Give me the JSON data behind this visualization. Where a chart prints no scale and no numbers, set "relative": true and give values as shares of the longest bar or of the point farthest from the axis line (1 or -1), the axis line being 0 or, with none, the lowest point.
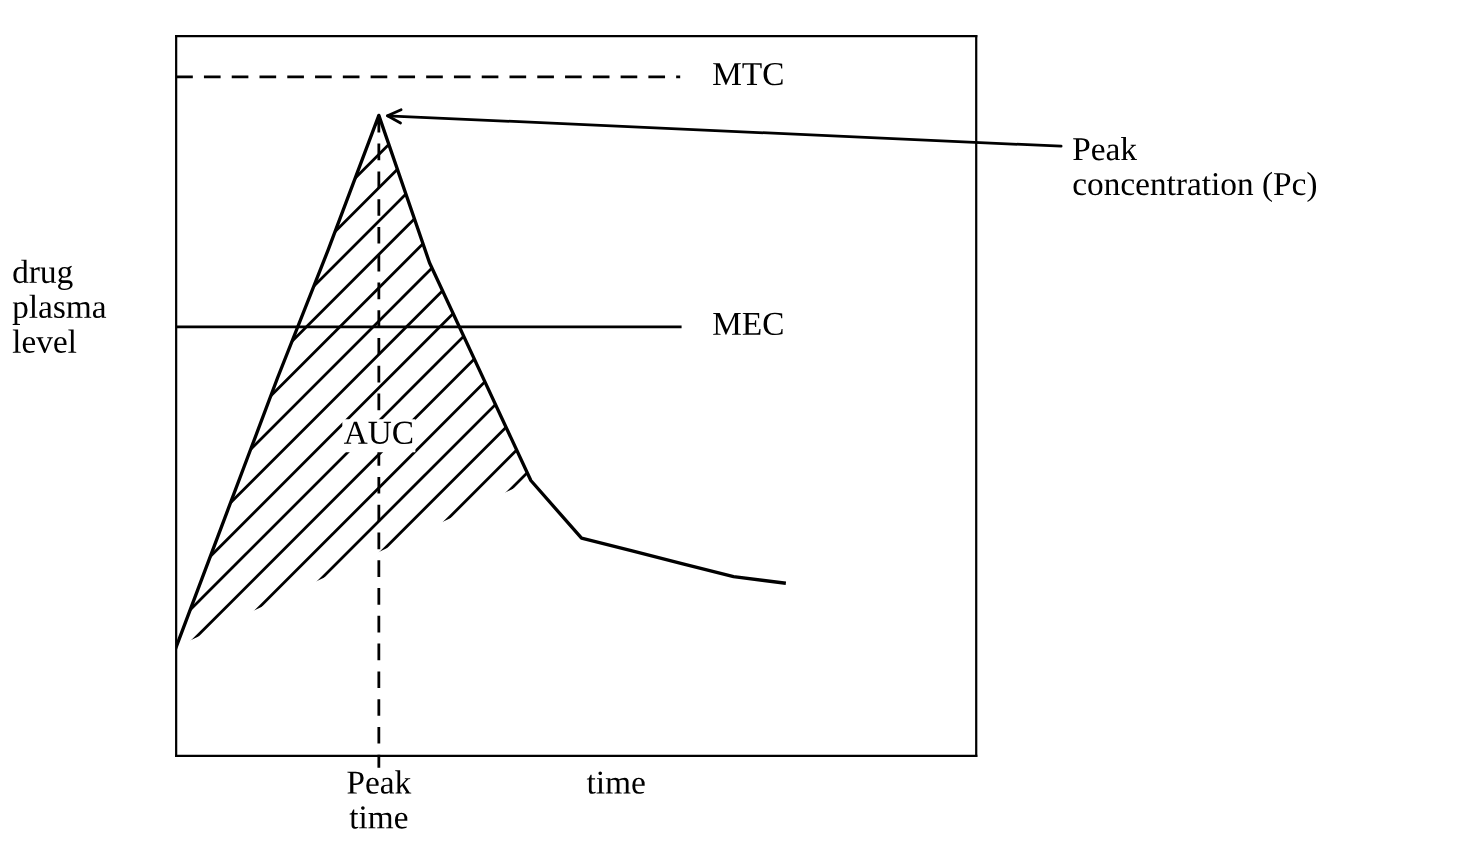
{
  "chart_data": {
    "type": "line",
    "relative": true,
    "xlabel": "time",
    "ylabel": "drug plasma level",
    "categories": [
      null,
      null,
      null,
      null,
      null,
      null,
      null,
      null,
      null,
      null,
      null,
      null,
      null
    ],
    "series": [
      {
        "color": "#000000",
        "values": [
          0.17,
          0.38,
          0.59,
          0.79,
          1,
          0.77,
          0.6,
          0.43,
          0.34,
          0.32,
          0.3,
          0.28,
          0.27
        ]
      }
    ],
    "ref_lines": [
      {
        "axis": "y",
        "value": 1.06,
        "label": "MTC",
        "line_style": "dashed",
        "color": "#000000"
      },
      {
        "axis": "y",
        "value": 0.67,
        "label": "MEC",
        "line_style": "solid",
        "color": "#000000"
      }
    ],
    "annotations": [
      "AUC",
      "Peak concentration (Pc)",
      "Peak time"
    ],
    "legend": false,
    "marker": "none",
    "line_style": "solid"
  }
}
